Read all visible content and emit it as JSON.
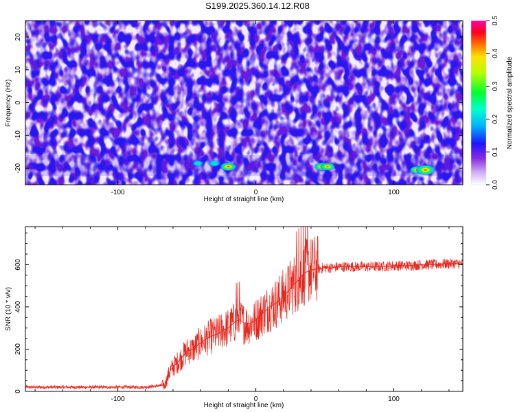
{
  "title": "S199.2025.360.14.12.R08",
  "chart_data": [
    {
      "type": "heatmap",
      "xlabel": "Height of straight line (km)",
      "ylabel": "Frequency (Hz)",
      "xlim": [
        -167,
        150
      ],
      "ylim": [
        -25,
        25
      ],
      "xticks": [
        -100,
        0,
        100
      ],
      "yticks": [
        -20,
        -10,
        0,
        10,
        20
      ],
      "colorbar": {
        "label": "Normalized spectral amplitude",
        "range": [
          0,
          0.5
        ],
        "ticks": [
          0.0,
          0.1,
          0.2,
          0.3,
          0.4,
          0.5
        ],
        "colors": [
          "#ffffff",
          "#8a2be2",
          "#0000ff",
          "#00ffff",
          "#00ff00",
          "#ffff00",
          "#ff0000",
          "#ff00ff"
        ]
      },
      "hotspots": [
        {
          "x": -42,
          "y": -18.5,
          "value": 0.22
        },
        {
          "x": -30,
          "y": -18.5,
          "value": 0.25
        },
        {
          "x": -20,
          "y": -19.5,
          "value": 0.32
        },
        {
          "x": 48,
          "y": -19.5,
          "value": 0.3
        },
        {
          "x": 52,
          "y": -19.5,
          "value": 0.27
        },
        {
          "x": 117,
          "y": -20.5,
          "value": 0.28
        },
        {
          "x": 123,
          "y": -20.5,
          "value": 0.42
        }
      ]
    },
    {
      "type": "line",
      "xlabel": "Height of straight line (km)",
      "ylabel": "SNR (10 * v/v)",
      "xlim": [
        -167,
        150
      ],
      "ylim": [
        0,
        780
      ],
      "xticks": [
        -100,
        0,
        100
      ],
      "yticks": [
        0,
        200,
        400,
        600
      ],
      "series": [
        {
          "color": "#e8281e",
          "x": [
            -167,
            -120,
            -80,
            -66,
            -62,
            -55,
            -50,
            -45,
            -42,
            -38,
            -33,
            -28,
            -24,
            -20,
            -15,
            -12,
            -8,
            -4,
            0,
            5,
            10,
            15,
            20,
            23,
            26,
            30,
            35,
            40,
            45,
            50,
            55,
            60,
            70,
            80,
            90,
            100,
            110,
            120,
            130,
            140,
            150
          ],
          "y": [
            20,
            20,
            20,
            30,
            100,
            150,
            190,
            200,
            220,
            240,
            260,
            270,
            290,
            300,
            330,
            340,
            320,
            320,
            340,
            370,
            400,
            420,
            450,
            470,
            500,
            520,
            560,
            575,
            580,
            585,
            585,
            590,
            590,
            590,
            590,
            595,
            595,
            600,
            600,
            605,
            605
          ]
        }
      ]
    }
  ]
}
